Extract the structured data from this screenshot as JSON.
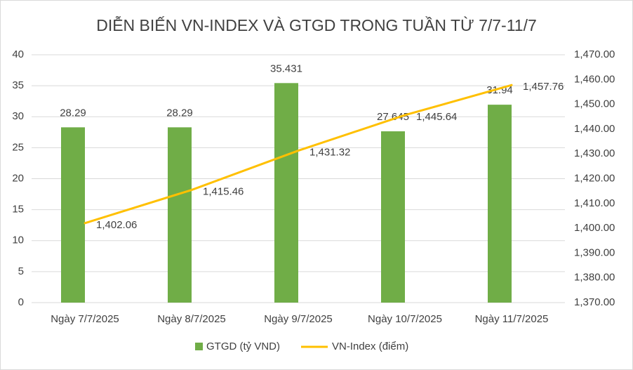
{
  "chart_data": {
    "type": "bar-line",
    "title": "DIỄN BIẾN VN-INDEX VÀ GTGD TRONG TUẦN TỪ 7/7-11/7",
    "categories": [
      "Ngày 7/7/2025",
      "Ngày 8/7/2025",
      "Ngày 9/7/2025",
      "Ngày 10/7/2025",
      "Ngày 11/7/2025"
    ],
    "series": [
      {
        "name": "GTGD (tỷ VND)",
        "type": "bar",
        "color": "#70ad47",
        "values": [
          28.29,
          28.29,
          35.431,
          27.645,
          31.94
        ]
      },
      {
        "name": "VN-Index (điểm)",
        "type": "line",
        "axis": "y2",
        "color": "#ffc000",
        "values": [
          1402.06,
          1415.46,
          1431.32,
          1445.64,
          1457.76
        ],
        "value_labels": [
          "1,402.06",
          "1,415.46",
          "1,431.32",
          "1,445.64",
          "1,457.76"
        ]
      }
    ],
    "ylim": [
      0,
      40
    ],
    "yticks": [
      0,
      5,
      10,
      15,
      20,
      25,
      30,
      35,
      40
    ],
    "y2lim": [
      1370,
      1470
    ],
    "y2ticks": [
      {
        "value": 1370,
        "label": "1,370.00"
      },
      {
        "value": 1380,
        "label": "1,380.00"
      },
      {
        "value": 1390,
        "label": "1,390.00"
      },
      {
        "value": 1400,
        "label": "1,400.00"
      },
      {
        "value": 1410,
        "label": "1,410.00"
      },
      {
        "value": 1420,
        "label": "1,420.00"
      },
      {
        "value": 1430,
        "label": "1,430.00"
      },
      {
        "value": 1440,
        "label": "1,440.00"
      },
      {
        "value": 1450,
        "label": "1,450.00"
      },
      {
        "value": 1460,
        "label": "1,460.00"
      },
      {
        "value": 1470,
        "label": "1,470.00"
      }
    ],
    "grid": true,
    "legend": "bottom"
  }
}
